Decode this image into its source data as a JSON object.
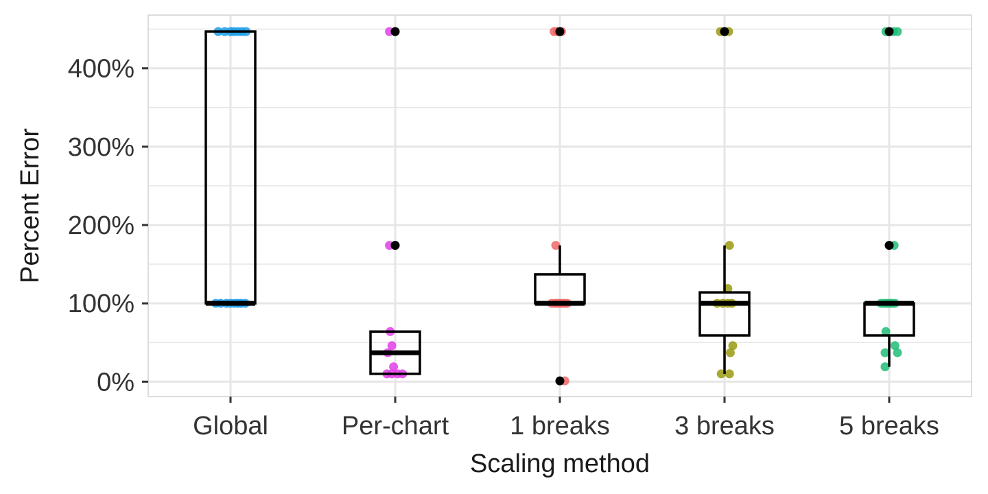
{
  "chart_data": {
    "type": "box",
    "title": "",
    "xlabel": "Scaling method",
    "ylabel": "Percent Error",
    "ylim": [
      -19,
      468
    ],
    "y_ticks": [
      0,
      100,
      200,
      300,
      400
    ],
    "y_tick_labels": [
      "0%",
      "100%",
      "200%",
      "300%",
      "400%"
    ],
    "grid": true,
    "legend": "none",
    "categories": [
      "Global",
      "Per-chart",
      "1 breaks",
      "3 breaks",
      "5 breaks"
    ],
    "series": [
      {
        "name": "Global",
        "color": "#1b9ce6",
        "box": {
          "q1": 100,
          "median": 100,
          "q3": 447,
          "whisker_low": 100,
          "whisker_high": 447
        },
        "outliers": [],
        "points": [
          {
            "dx": -0.15,
            "y": 447
          },
          {
            "dx": -0.07,
            "y": 447
          },
          {
            "dx": 0.0,
            "y": 447
          },
          {
            "dx": 0.04,
            "y": 447
          },
          {
            "dx": 0.09,
            "y": 447
          },
          {
            "dx": 0.14,
            "y": 447
          },
          {
            "dx": 0.19,
            "y": 447
          },
          {
            "dx": -0.18,
            "y": 100
          },
          {
            "dx": -0.12,
            "y": 100
          },
          {
            "dx": -0.05,
            "y": 100
          },
          {
            "dx": 0.0,
            "y": 100
          },
          {
            "dx": 0.05,
            "y": 100
          },
          {
            "dx": 0.09,
            "y": 100
          },
          {
            "dx": 0.13,
            "y": 100
          },
          {
            "dx": 0.18,
            "y": 100
          }
        ]
      },
      {
        "name": "Per-chart",
        "color": "#e040e8",
        "box": {
          "q1": 10,
          "median": 37,
          "q3": 64,
          "whisker_low": 10,
          "whisker_high": 64
        },
        "outliers": [
          447,
          174
        ],
        "points": [
          {
            "dx": -0.07,
            "y": 447
          },
          {
            "dx": -0.07,
            "y": 174
          },
          {
            "dx": 0.0,
            "y": 174
          },
          {
            "dx": -0.06,
            "y": 64
          },
          {
            "dx": -0.04,
            "y": 46
          },
          {
            "dx": -0.09,
            "y": 37
          },
          {
            "dx": -0.02,
            "y": 19
          },
          {
            "dx": -0.1,
            "y": 10
          },
          {
            "dx": -0.04,
            "y": 10
          },
          {
            "dx": 0.03,
            "y": 10
          },
          {
            "dx": 0.09,
            "y": 10
          }
        ]
      },
      {
        "name": "1 breaks",
        "color": "#f06666",
        "box": {
          "q1": 100,
          "median": 100,
          "q3": 137,
          "whisker_low": 100,
          "whisker_high": 174
        },
        "outliers": [
          447,
          1
        ],
        "points": [
          {
            "dx": -0.07,
            "y": 447
          },
          {
            "dx": -0.03,
            "y": 447
          },
          {
            "dx": 0.02,
            "y": 447
          },
          {
            "dx": -0.05,
            "y": 174
          },
          {
            "dx": -0.1,
            "y": 100
          },
          {
            "dx": -0.06,
            "y": 100
          },
          {
            "dx": -0.03,
            "y": 100
          },
          {
            "dx": 0.0,
            "y": 100
          },
          {
            "dx": 0.03,
            "y": 100
          },
          {
            "dx": 0.06,
            "y": 100
          },
          {
            "dx": 0.09,
            "y": 100
          },
          {
            "dx": 0.06,
            "y": 1
          }
        ]
      },
      {
        "name": "3 breaks",
        "color": "#999a10",
        "box": {
          "q1": 59,
          "median": 100,
          "q3": 114,
          "whisker_low": 10,
          "whisker_high": 174
        },
        "outliers": [
          447
        ],
        "points": [
          {
            "dx": -0.05,
            "y": 447
          },
          {
            "dx": 0.05,
            "y": 447
          },
          {
            "dx": 0.06,
            "y": 174
          },
          {
            "dx": 0.04,
            "y": 119
          },
          {
            "dx": -0.09,
            "y": 100
          },
          {
            "dx": -0.02,
            "y": 100
          },
          {
            "dx": 0.04,
            "y": 100
          },
          {
            "dx": 0.09,
            "y": 100
          },
          {
            "dx": 0.1,
            "y": 46
          },
          {
            "dx": 0.07,
            "y": 37
          },
          {
            "dx": -0.04,
            "y": 10
          },
          {
            "dx": 0.06,
            "y": 10
          }
        ]
      },
      {
        "name": "5 breaks",
        "color": "#20bd78",
        "box": {
          "q1": 59,
          "median": 100,
          "q3": 100,
          "whisker_low": 19,
          "whisker_high": 100
        },
        "outliers": [
          447,
          174
        ],
        "points": [
          {
            "dx": -0.04,
            "y": 447
          },
          {
            "dx": 0.05,
            "y": 447
          },
          {
            "dx": 0.1,
            "y": 447
          },
          {
            "dx": 0.06,
            "y": 174
          },
          {
            "dx": -0.1,
            "y": 100
          },
          {
            "dx": -0.06,
            "y": 100
          },
          {
            "dx": -0.03,
            "y": 100
          },
          {
            "dx": 0.0,
            "y": 100
          },
          {
            "dx": 0.03,
            "y": 100
          },
          {
            "dx": 0.07,
            "y": 100
          },
          {
            "dx": -0.04,
            "y": 64
          },
          {
            "dx": 0.07,
            "y": 46
          },
          {
            "dx": -0.05,
            "y": 37
          },
          {
            "dx": 0.1,
            "y": 37
          },
          {
            "dx": -0.05,
            "y": 19
          }
        ]
      }
    ],
    "style": {
      "grid_color": "#e6e6e6",
      "border_color": "#dcdcdc",
      "box_color": "#000000",
      "outlier_color": "#000000"
    }
  }
}
